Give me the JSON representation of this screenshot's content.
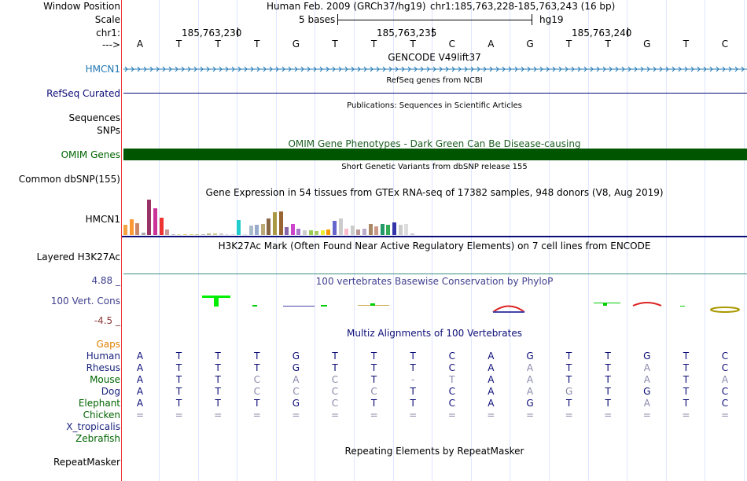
{
  "header": {
    "window_position_label": "Window Position",
    "scale_label": "Scale",
    "chr_label": "chr1:",
    "arrow_label": "--->",
    "assembly": "Human Feb. 2009 (GRCh37/hg19)",
    "position": "chr1:185,763,228-185,763,243 (16 bp)",
    "scale_text": "5 bases",
    "db": "hg19",
    "ruler_ticks": [
      "185,763,230",
      "185,763,235",
      "185,763,240"
    ],
    "bases": [
      "A",
      "T",
      "T",
      "T",
      "G",
      "T",
      "T",
      "T",
      "C",
      "A",
      "G",
      "T",
      "T",
      "G",
      "T",
      "C"
    ]
  },
  "tracks": {
    "gencode": {
      "title": "GENCODE V49lift37",
      "label": "HMCN1"
    },
    "refseq": {
      "title": "RefSeq genes from NCBI",
      "label": "RefSeq Curated"
    },
    "publications": {
      "title": "Publications: Sequences in Scientific Articles",
      "label_line1": "Sequences",
      "label_line2": "SNPs"
    },
    "omim": {
      "title": "OMIM Gene Phenotypes - Dark Green Can Be Disease-causing",
      "label": "OMIM Genes"
    },
    "dbsnp": {
      "title": "Short Genetic Variants from dbSNP release 155",
      "label": "Common dbSNP(155)"
    },
    "gtex": {
      "title": "Gene Expression in 54 tissues from GTEx RNA-seq of 17382 samples, 948 donors (V8, Aug 2019)",
      "label": "HMCN1",
      "bar_levels": [
        0.28,
        0.42,
        0.32,
        0.06,
        0.96,
        0.72,
        0.46,
        0.14,
        0.02,
        0.02,
        0.02,
        0.02,
        0.03,
        0.02,
        0.04,
        0.04,
        0.04,
        0.02,
        0.02,
        0.4,
        0.02,
        0.25,
        0.28,
        0.3,
        0.44,
        0.62,
        0.64,
        0.22,
        0.3,
        0.18,
        0.12,
        0.12,
        0.1,
        0.12,
        0.14,
        0.38,
        0.44,
        0.18,
        0.26,
        0.14,
        0.16,
        0.3,
        0.24,
        0.3,
        0.28,
        0.34,
        0.28,
        0.3,
        0.04
      ],
      "bar_colors": [
        "#f4a340",
        "#ff9933",
        "#cc8866",
        "#aaaaaa",
        "#993366",
        "#cc3399",
        "#ee3333",
        "#cc9999",
        "#bbbbbb",
        "#dddd99",
        "#eecc66",
        "#dddd66",
        "#cccc99",
        "#bbbbbb",
        "#bbbb88",
        "#cccc88",
        "#cccccc",
        "#dddddd",
        "#dddddd",
        "#22cccc",
        "#dddddd",
        "#aabbcc",
        "#99aacc",
        "#bbaa77",
        "#886644",
        "#aa9944",
        "#996633",
        "#8866aa",
        "#cc44cc",
        "#aa77cc",
        "#cccccc",
        "#99cc55",
        "#aacc66",
        "#eeee33",
        "#ff9900",
        "#6666cc",
        "#cccccc",
        "#ffbbcc",
        "#cccccc",
        "#bb9999",
        "#bbaacc",
        "#aa8866",
        "#cc9988",
        "#229966",
        "#33aa55",
        "#3333aa",
        "#cccccc",
        "#dddddd",
        "#cccccc"
      ]
    },
    "h3k27ac": {
      "title": "H3K27Ac Mark (Often Found Near Active Regulatory Elements) on 7 cell lines from ENCODE",
      "label": "Layered H3K27Ac"
    },
    "phylop": {
      "title": "100 vertebrates Basewise Conservation by PhyloP",
      "label": "100 Vert. Cons",
      "max_label": "4.88 _",
      "min_label": "-4.5 _"
    },
    "multiz": {
      "title": "Multiz Alignments of 100 Vertebrates",
      "gaps_label": "Gaps",
      "species": [
        {
          "name": "Human",
          "bases": [
            "A",
            "T",
            "T",
            "T",
            "G",
            "T",
            "T",
            "T",
            "C",
            "A",
            "G",
            "T",
            "T",
            "G",
            "T",
            "C"
          ]
        },
        {
          "name": "Rhesus",
          "bases": [
            "A",
            "T",
            "T",
            "T",
            "G",
            "T",
            "T",
            "T",
            "C",
            "A",
            "A",
            "T",
            "T",
            "A",
            "T",
            "C"
          ]
        },
        {
          "name": "Mouse",
          "bases": [
            "A",
            "T",
            "T",
            "C",
            "A",
            "C",
            "T",
            "-",
            "T",
            "A",
            "A",
            "T",
            "T",
            "A",
            "T",
            "A"
          ]
        },
        {
          "name": "Dog",
          "bases": [
            "A",
            "T",
            "T",
            "C",
            "C",
            "C",
            "C",
            "T",
            "C",
            "A",
            "A",
            "G",
            "T",
            "G",
            "T",
            "C"
          ]
        },
        {
          "name": "Elephant",
          "bases": [
            "A",
            "T",
            "T",
            "T",
            "G",
            "C",
            "T",
            "T",
            "C",
            "A",
            "G",
            "T",
            "T",
            "A",
            "T",
            "C"
          ]
        },
        {
          "name": "Chicken",
          "bases": [
            "=",
            "=",
            "=",
            "=",
            "=",
            "=",
            "=",
            "=",
            "=",
            "=",
            "=",
            "=",
            "=",
            "=",
            "=",
            "="
          ]
        },
        {
          "name": "X_tropicalis",
          "bases": []
        },
        {
          "name": "Zebrafish",
          "bases": []
        }
      ]
    },
    "repeatmasker": {
      "title": "Repeating Elements by RepeatMasker",
      "label": "RepeatMasker"
    }
  },
  "colors": {
    "gencode": "#1f77b4",
    "refseq": "#0c0c78",
    "omim": "#005500",
    "phylop": "#404090",
    "multiz": "#0c0c78",
    "gaps": "#e07f00",
    "green_label": "#006400",
    "human_row": "#1a237e",
    "mismatch_base": "#8888aa",
    "match_base": "#0c0c78"
  },
  "species_label_colors": [
    "#1a237e",
    "#1a237e",
    "#006400",
    "#1a237e",
    "#006400",
    "#006400",
    "#1a237e",
    "#006400"
  ],
  "mismatch_grid": [
    [
      0,
      0,
      0,
      0,
      0,
      0,
      0,
      0,
      0,
      0,
      0,
      0,
      0,
      0,
      0,
      0
    ],
    [
      0,
      0,
      0,
      0,
      0,
      0,
      0,
      0,
      0,
      0,
      1,
      0,
      0,
      1,
      0,
      0
    ],
    [
      0,
      0,
      0,
      1,
      1,
      1,
      0,
      1,
      1,
      0,
      1,
      0,
      0,
      1,
      0,
      1
    ],
    [
      0,
      0,
      0,
      1,
      1,
      1,
      1,
      0,
      0,
      0,
      1,
      1,
      0,
      0,
      0,
      0
    ],
    [
      0,
      0,
      0,
      0,
      0,
      1,
      0,
      0,
      0,
      0,
      0,
      0,
      0,
      1,
      0,
      0
    ],
    [
      1,
      1,
      1,
      1,
      1,
      1,
      1,
      1,
      1,
      1,
      1,
      1,
      1,
      1,
      1,
      1
    ],
    [],
    []
  ]
}
